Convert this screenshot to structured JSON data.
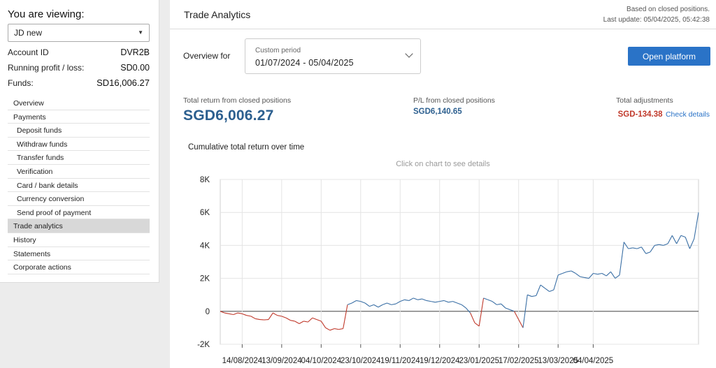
{
  "sidebar": {
    "viewing_title": "You are viewing:",
    "account_select": "JD new",
    "account_id_label": "Account ID",
    "account_id_value": "DVR2B",
    "running_pl_label": "Running profit / loss:",
    "running_pl_value": "SD0.00",
    "funds_label": "Funds:",
    "funds_value": "SD16,006.27",
    "nav": [
      {
        "label": "Overview",
        "sub": false,
        "active": false
      },
      {
        "label": "Payments",
        "sub": false,
        "active": false
      },
      {
        "label": "Deposit funds",
        "sub": true,
        "active": false
      },
      {
        "label": "Withdraw funds",
        "sub": true,
        "active": false
      },
      {
        "label": "Transfer funds",
        "sub": true,
        "active": false
      },
      {
        "label": "Verification",
        "sub": true,
        "active": false
      },
      {
        "label": "Card / bank details",
        "sub": true,
        "active": false
      },
      {
        "label": "Currency conversion",
        "sub": true,
        "active": false
      },
      {
        "label": "Send proof of payment",
        "sub": true,
        "active": false
      },
      {
        "label": "Trade analytics",
        "sub": false,
        "active": true
      },
      {
        "label": "History",
        "sub": false,
        "active": false
      },
      {
        "label": "Statements",
        "sub": false,
        "active": false
      },
      {
        "label": "Corporate actions",
        "sub": false,
        "active": false
      }
    ]
  },
  "header": {
    "title": "Trade Analytics",
    "based_on": "Based on closed positions.",
    "last_update": "Last update: 05/04/2025, 05:42:38"
  },
  "overview": {
    "label": "Overview for",
    "period_caption": "Custom period",
    "period_value": "01/07/2024 - 05/04/2025",
    "open_platform": "Open platform"
  },
  "stats": {
    "total_return_label": "Total return from closed positions",
    "total_return_value": "SGD6,006.27",
    "pl_label": "P/L from closed positions",
    "pl_value": "SGD6,140.65",
    "adjustments_label": "Total adjustments",
    "adjustments_value": "SGD-134.38",
    "check_details": "Check details"
  },
  "colors": {
    "positive_line": "#3a6fa5",
    "negative_line": "#c0392b",
    "accent": "#2a73c7"
  },
  "chart_data": {
    "type": "line",
    "title": "Cumulative total return over time",
    "hint": "Click on chart to see details",
    "ylim": [
      -2000,
      8000
    ],
    "y_ticks": [
      -2000,
      0,
      2000,
      4000,
      6000,
      8000
    ],
    "y_tick_labels": [
      "-2K",
      "0",
      "2K",
      "4K",
      "6K",
      "8K"
    ],
    "x_tick_labels": [
      "14/08/2024",
      "13/09/2024",
      "04/10/2024",
      "23/10/2024",
      "19/11/2024",
      "19/12/2024",
      "23/01/2025",
      "17/02/2025",
      "13/03/2025",
      "04/04/2025"
    ],
    "x_tick_positions": [
      5,
      14,
      23,
      32,
      41,
      50,
      59,
      68,
      77,
      85
    ],
    "values": [
      0,
      -100,
      -150,
      -200,
      -100,
      -150,
      -250,
      -300,
      -450,
      -500,
      -520,
      -500,
      -100,
      -250,
      -300,
      -400,
      -550,
      -600,
      -750,
      -600,
      -650,
      -400,
      -500,
      -600,
      -1000,
      -1150,
      -1050,
      -1100,
      -1050,
      400,
      500,
      650,
      600,
      500,
      300,
      400,
      250,
      400,
      500,
      400,
      450,
      600,
      700,
      650,
      800,
      700,
      750,
      650,
      600,
      550,
      600,
      650,
      550,
      600,
      500,
      400,
      200,
      -100,
      -700,
      -900,
      800,
      700,
      600,
      400,
      450,
      200,
      100,
      0,
      -500,
      -1000,
      1000,
      900,
      950,
      1600,
      1400,
      1200,
      1300,
      2200,
      2300,
      2400,
      2450,
      2300,
      2100,
      2050,
      2000,
      2300,
      2250,
      2300,
      2150,
      2400,
      2000,
      2200,
      4200,
      3800,
      3850,
      3800,
      3900,
      3500,
      3600,
      4000,
      4050,
      4000,
      4100,
      4600,
      4100,
      4600,
      4500,
      3800,
      4400,
      6000
    ]
  }
}
